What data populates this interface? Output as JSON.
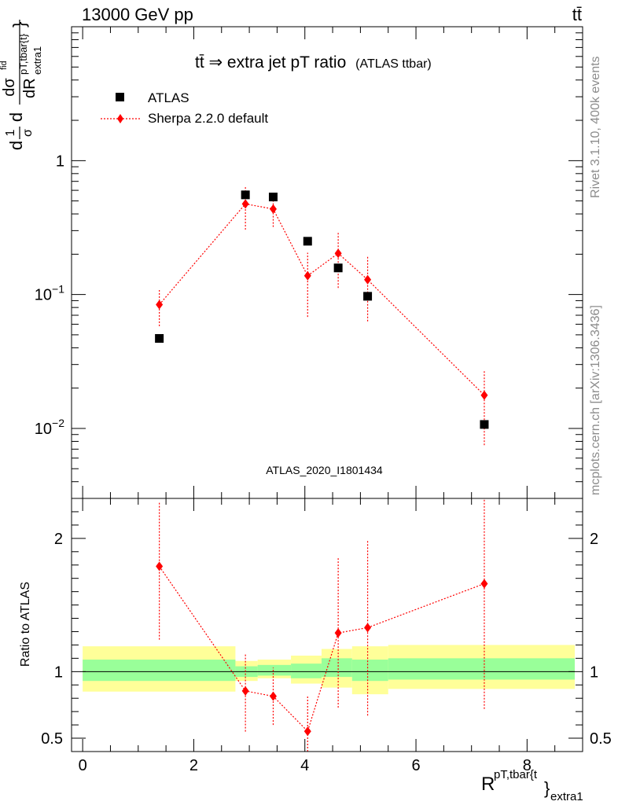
{
  "header": {
    "left": "13000 GeV pp",
    "right": "tt̄"
  },
  "side_notes": {
    "rivet": "Rivet 3.1.10,  400k events",
    "mcplots": "mcplots.cern.ch [arXiv:1306.3436]"
  },
  "chart_data": [
    {
      "type": "scatter",
      "panel": "main",
      "title": "tt̄ ⇒ extra jet pT ratio",
      "title_suffix": "(ATLAS ttbar)",
      "ylabel": "1/σ dσ/dR^{pT,tbar{t}}_{extra1}",
      "yscale": "log",
      "ylim": [
        0.003,
        10
      ],
      "xlim": [
        -0.2,
        9.0
      ],
      "y_tick_labels": [
        "1",
        "10^-1",
        "10^-2"
      ],
      "watermark": "ATLAS_2020_I1801434",
      "legend_position": "top-left",
      "series": [
        {
          "name": "ATLAS",
          "color": "#000000",
          "marker": "square",
          "x": [
            1.38,
            2.93,
            3.43,
            4.05,
            4.6,
            5.13,
            7.23
          ],
          "y": [
            0.047,
            0.555,
            0.535,
            0.25,
            0.158,
            0.097,
            0.0107
          ]
        },
        {
          "name": "Sherpa 2.2.0 default",
          "color": "#ff0000",
          "marker": "diamond",
          "line": "dotted",
          "x": [
            1.38,
            2.93,
            3.43,
            4.05,
            4.6,
            5.13,
            7.23
          ],
          "y": [
            0.084,
            0.475,
            0.435,
            0.138,
            0.203,
            0.129,
            0.0177
          ],
          "yerr_low": [
            0.058,
            0.305,
            0.32,
            0.068,
            0.112,
            0.063,
            0.0075
          ],
          "yerr_high": [
            0.108,
            0.64,
            0.56,
            0.205,
            0.295,
            0.193,
            0.0272
          ]
        }
      ]
    },
    {
      "type": "scatter",
      "panel": "ratio",
      "ylabel": "Ratio to ATLAS",
      "xlabel": "R^{pT,tbar{t}}_{extra1}",
      "xlim": [
        -0.2,
        9.0
      ],
      "ylim": [
        0.4,
        2.3
      ],
      "x_ticks": [
        0,
        2,
        4,
        6,
        8
      ],
      "y_ticks": [
        0.5,
        1,
        2
      ],
      "reference_line": 1,
      "bands": {
        "edges": [
          0,
          2.75,
          3.15,
          3.75,
          4.3,
          4.85,
          5.5,
          9.0
        ],
        "inner_low": [
          0.93,
          0.96,
          0.97,
          0.95,
          0.96,
          0.93,
          0.94
        ],
        "inner_high": [
          1.09,
          1.04,
          1.05,
          1.06,
          1.1,
          1.09,
          1.1
        ],
        "outer_low": [
          0.85,
          0.93,
          0.95,
          0.91,
          0.88,
          0.83,
          0.87
        ],
        "outer_high": [
          1.19,
          1.08,
          1.09,
          1.12,
          1.17,
          1.19,
          1.2
        ],
        "inner_color": "#99ff99",
        "outer_color": "#ffff99"
      },
      "series": [
        {
          "name": "Sherpa 2.2.0 default",
          "color": "#ff0000",
          "x": [
            1.38,
            2.93,
            3.43,
            4.05,
            4.6,
            5.13,
            7.23
          ],
          "y": [
            1.79,
            0.855,
            0.815,
            0.552,
            1.29,
            1.33,
            1.66
          ],
          "yerr_low": [
            1.24,
            0.55,
            0.6,
            0.27,
            0.73,
            0.67,
            0.72
          ],
          "yerr_high": [
            2.27,
            1.14,
            1.03,
            0.82,
            1.86,
            1.99,
            2.5
          ]
        }
      ]
    }
  ]
}
